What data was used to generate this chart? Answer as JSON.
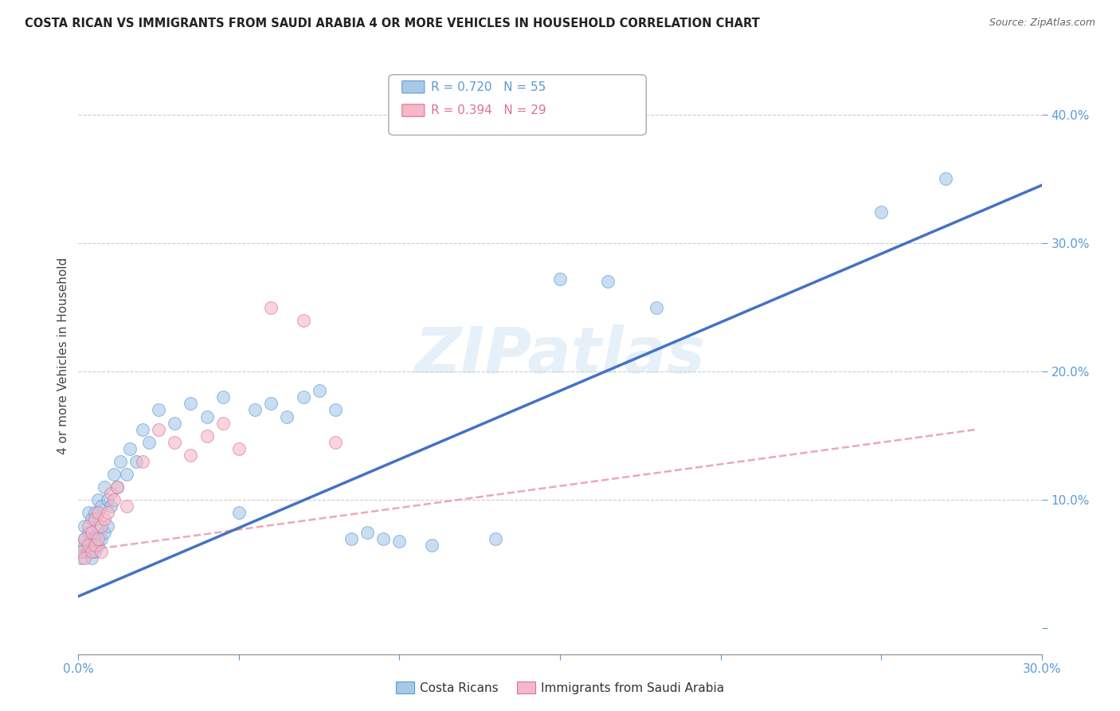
{
  "title": "COSTA RICAN VS IMMIGRANTS FROM SAUDI ARABIA 4 OR MORE VEHICLES IN HOUSEHOLD CORRELATION CHART",
  "source": "Source: ZipAtlas.com",
  "ylabel": "4 or more Vehicles in Household",
  "watermark": "ZIPatlas",
  "xlim": [
    0.0,
    0.3
  ],
  "ylim": [
    -0.02,
    0.445
  ],
  "blue_fill": "#a8c8e8",
  "blue_edge": "#5b9bd5",
  "blue_line": "#4472c4",
  "pink_fill": "#f4b8c8",
  "pink_edge": "#e07090",
  "pink_line": "#e8a0b0",
  "cr_x": [
    0.001,
    0.001,
    0.002,
    0.002,
    0.002,
    0.003,
    0.003,
    0.003,
    0.004,
    0.004,
    0.004,
    0.005,
    0.005,
    0.005,
    0.006,
    0.006,
    0.006,
    0.007,
    0.007,
    0.008,
    0.008,
    0.009,
    0.009,
    0.01,
    0.011,
    0.012,
    0.013,
    0.015,
    0.016,
    0.018,
    0.02,
    0.022,
    0.025,
    0.03,
    0.035,
    0.04,
    0.045,
    0.05,
    0.055,
    0.06,
    0.065,
    0.07,
    0.075,
    0.08,
    0.085,
    0.09,
    0.095,
    0.1,
    0.11,
    0.13,
    0.15,
    0.165,
    0.18,
    0.25,
    0.27
  ],
  "cr_y": [
    0.055,
    0.06,
    0.065,
    0.07,
    0.08,
    0.06,
    0.075,
    0.09,
    0.055,
    0.07,
    0.085,
    0.06,
    0.07,
    0.09,
    0.065,
    0.08,
    0.1,
    0.07,
    0.095,
    0.075,
    0.11,
    0.08,
    0.1,
    0.095,
    0.12,
    0.11,
    0.13,
    0.12,
    0.14,
    0.13,
    0.155,
    0.145,
    0.17,
    0.16,
    0.175,
    0.165,
    0.18,
    0.09,
    0.17,
    0.175,
    0.165,
    0.18,
    0.185,
    0.17,
    0.07,
    0.075,
    0.07,
    0.068,
    0.065,
    0.07,
    0.272,
    0.27,
    0.25,
    0.324,
    0.35
  ],
  "sa_x": [
    0.001,
    0.002,
    0.002,
    0.003,
    0.003,
    0.004,
    0.004,
    0.005,
    0.005,
    0.006,
    0.006,
    0.007,
    0.007,
    0.008,
    0.009,
    0.01,
    0.011,
    0.012,
    0.015,
    0.02,
    0.025,
    0.03,
    0.035,
    0.04,
    0.045,
    0.05,
    0.06,
    0.07,
    0.08
  ],
  "sa_y": [
    0.06,
    0.055,
    0.07,
    0.065,
    0.08,
    0.06,
    0.075,
    0.065,
    0.085,
    0.07,
    0.09,
    0.06,
    0.08,
    0.085,
    0.09,
    0.105,
    0.1,
    0.11,
    0.095,
    0.13,
    0.155,
    0.145,
    0.135,
    0.15,
    0.16,
    0.14,
    0.25,
    0.24,
    0.145
  ],
  "cr_line_x": [
    0.0,
    0.3
  ],
  "cr_line_y": [
    0.025,
    0.345
  ],
  "sa_line_x": [
    0.0,
    0.28
  ],
  "sa_line_y": [
    0.06,
    0.155
  ]
}
